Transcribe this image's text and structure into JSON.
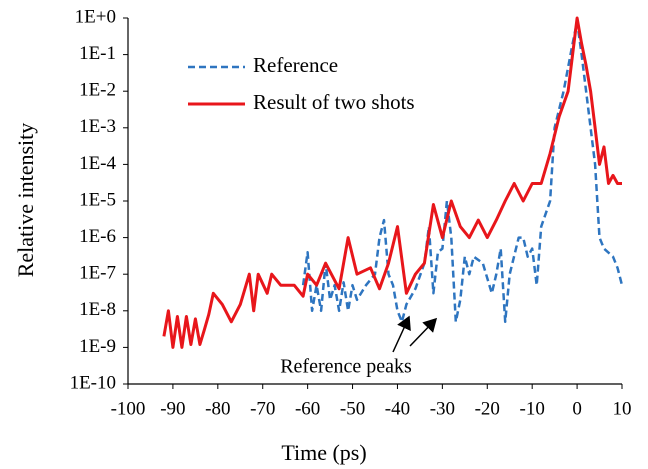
{
  "chart_data": {
    "type": "line",
    "xlabel": "Time (ps)",
    "ylabel": "Relative intensity",
    "xlim": [
      -100,
      10
    ],
    "xticks": [
      -100,
      -90,
      -80,
      -70,
      -60,
      -50,
      -40,
      -30,
      -20,
      -10,
      0,
      10
    ],
    "ylim": [
      1e-10,
      1
    ],
    "yscale": "log",
    "yticks": [
      {
        "value": 1e-10,
        "label": "1E-10"
      },
      {
        "value": 1e-09,
        "label": "1E-9"
      },
      {
        "value": 1e-08,
        "label": "1E-8"
      },
      {
        "value": 1e-07,
        "label": "1E-7"
      },
      {
        "value": 1e-06,
        "label": "1E-6"
      },
      {
        "value": 1e-05,
        "label": "1E-5"
      },
      {
        "value": 0.0001,
        "label": "1E-4"
      },
      {
        "value": 0.001,
        "label": "1E-3"
      },
      {
        "value": 0.01,
        "label": "1E-2"
      },
      {
        "value": 0.1,
        "label": "1E-1"
      },
      {
        "value": 1,
        "label": "1E+0"
      }
    ],
    "legend": "upper left",
    "annotation": "Reference peaks",
    "series": [
      {
        "name": "Reference",
        "color": "#2e75c0",
        "dashed": true,
        "x": [
          -61,
          -60,
          -59,
          -58,
          -57,
          -56,
          -55,
          -54,
          -53,
          -52,
          -51,
          -50,
          -49,
          -47,
          -45,
          -44,
          -43,
          -42,
          -41,
          -40,
          -39,
          -38,
          -36,
          -34,
          -33,
          -32,
          -31,
          -30,
          -29,
          -28,
          -27,
          -26,
          -25,
          -24,
          -23,
          -21,
          -19,
          -18,
          -17,
          -16,
          -15,
          -13,
          -12,
          -11,
          -10,
          -9,
          -8,
          -6,
          -5,
          -3,
          -1,
          0,
          1,
          2,
          3,
          4,
          5,
          6,
          8,
          9,
          10
        ],
        "values": [
          5e-08,
          4e-07,
          1e-08,
          5e-08,
          1e-08,
          2e-07,
          2e-08,
          5e-08,
          1e-08,
          6e-08,
          1e-08,
          5e-08,
          2e-08,
          5e-08,
          1e-07,
          1e-06,
          3e-06,
          1e-07,
          5e-08,
          1e-08,
          5e-09,
          1.5e-08,
          4e-08,
          2e-07,
          2e-06,
          3e-08,
          4e-07,
          5e-07,
          1e-05,
          1e-06,
          5e-09,
          2e-08,
          3e-07,
          1e-07,
          3e-07,
          2e-07,
          3e-08,
          1e-07,
          5e-07,
          5e-09,
          1e-07,
          1e-06,
          1e-06,
          3e-07,
          5e-07,
          5e-08,
          2e-06,
          1e-05,
          0.001,
          0.01,
          0.2,
          0.8,
          0.1,
          0.01,
          0.001,
          0.0001,
          1e-06,
          5e-07,
          3e-07,
          1.5e-07,
          5e-08
        ]
      },
      {
        "name": "Result of two shots",
        "color": "#e8161b",
        "dashed": false,
        "x": [
          -92,
          -91,
          -90,
          -89,
          -88,
          -87,
          -86,
          -85,
          -84,
          -83,
          -82,
          -81,
          -79,
          -77,
          -75,
          -73,
          -72,
          -71,
          -69,
          -68,
          -66,
          -63,
          -61,
          -60,
          -58,
          -56,
          -53,
          -51,
          -49,
          -46,
          -44,
          -42,
          -40,
          -38,
          -36,
          -34,
          -32,
          -30,
          -28,
          -26,
          -24,
          -22,
          -20,
          -18,
          -16,
          -14,
          -12,
          -10,
          -8,
          -6,
          -4,
          -2,
          -1,
          0,
          1,
          2,
          3,
          4,
          5,
          6,
          7,
          8,
          9,
          10
        ],
        "values": [
          2e-09,
          1e-08,
          1e-09,
          7e-09,
          1e-09,
          7e-09,
          1.2e-09,
          6e-09,
          1.2e-09,
          3e-09,
          8e-09,
          3e-08,
          1.5e-08,
          5e-09,
          1.5e-08,
          1e-07,
          1e-08,
          1e-07,
          3e-08,
          1e-07,
          5e-08,
          5e-08,
          2.5e-08,
          1e-07,
          5e-08,
          2e-07,
          4e-08,
          1e-06,
          1e-07,
          1.5e-07,
          4e-08,
          2e-07,
          2e-06,
          3e-08,
          1e-07,
          2e-07,
          8e-06,
          1e-06,
          1e-05,
          2e-06,
          1e-06,
          3e-06,
          1e-06,
          3e-06,
          1e-05,
          3e-05,
          1e-05,
          3e-05,
          3e-05,
          0.0002,
          0.002,
          0.01,
          0.1,
          1,
          0.2,
          0.05,
          0.01,
          0.001,
          0.0001,
          0.0003,
          3e-05,
          5e-05,
          3e-05,
          3e-05
        ]
      }
    ]
  }
}
